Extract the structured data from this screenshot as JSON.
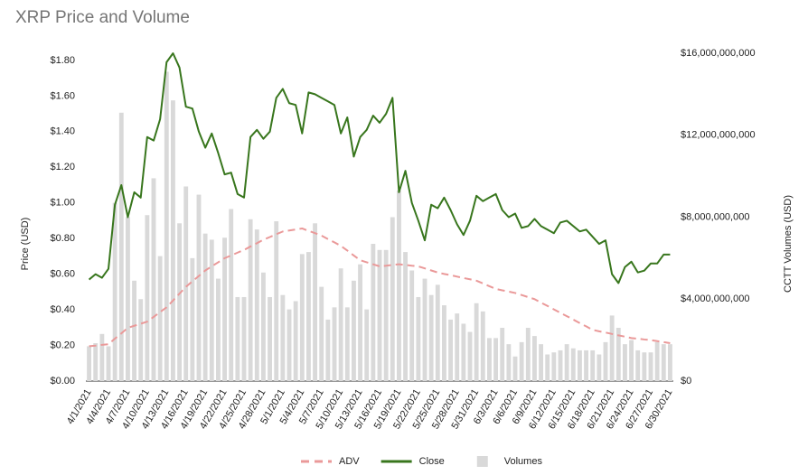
{
  "chart_data": {
    "type": "combo",
    "title": "XRP Price and Volume",
    "y_label": "Price (USD)",
    "y2_label": "CCTT Volumes (USD)",
    "categories": [
      "4/1/2021",
      null,
      null,
      "4/4/2021",
      null,
      null,
      "4/7/2021",
      null,
      null,
      "4/10/2021",
      null,
      null,
      "4/13/2021",
      null,
      null,
      "4/16/2021",
      null,
      null,
      "4/19/2021",
      null,
      null,
      "4/22/2021",
      null,
      null,
      "4/25/2021",
      null,
      null,
      "4/28/2021",
      null,
      null,
      "5/1/2021",
      null,
      null,
      "5/4/2021",
      null,
      null,
      "5/7/2021",
      null,
      null,
      "5/10/2021",
      null,
      null,
      "5/13/2021",
      null,
      null,
      "5/16/2021",
      null,
      null,
      "5/19/2021",
      null,
      null,
      "5/22/2021",
      null,
      null,
      "5/25/2021",
      null,
      null,
      "5/28/2021",
      null,
      null,
      "5/31/2021",
      null,
      null,
      "6/3/2021",
      null,
      null,
      "6/6/2021",
      null,
      null,
      "6/9/2021",
      null,
      null,
      "6/12/2021",
      null,
      null,
      "6/15/2021",
      null,
      null,
      "6/18/2021",
      null,
      null,
      "6/21/2021",
      null,
      null,
      "6/24/2021",
      null,
      null,
      "6/27/2021",
      null,
      null,
      "6/30/2021"
    ],
    "series": [
      {
        "name": "ADV",
        "type": "line",
        "dash": true,
        "axis": "y2",
        "color": "#ea9999",
        "values": [
          1700000000.0,
          1730000000.0,
          1770000000.0,
          1800000000.0,
          2070000000.0,
          2330000000.0,
          2600000000.0,
          2700000000.0,
          2800000000.0,
          2900000000.0,
          3130000000.0,
          3370000000.0,
          3600000000.0,
          3930000000.0,
          4270000000.0,
          4600000000.0,
          4870000000.0,
          5130000000.0,
          5400000000.0,
          5600000000.0,
          5800000000.0,
          6000000000.0,
          6130000000.0,
          6270000000.0,
          6400000000.0,
          6570000000.0,
          6730000000.0,
          6900000000.0,
          7030000000.0,
          7170000000.0,
          7300000000.0,
          7350000000.0,
          7400000000.0,
          7450000000.0,
          7330000000.0,
          7220000000.0,
          7100000000.0,
          6930000000.0,
          6770000000.0,
          6600000000.0,
          6370000000.0,
          6130000000.0,
          5900000000.0,
          5800000000.0,
          5700000000.0,
          5600000000.0,
          5630000000.0,
          5670000000.0,
          5700000000.0,
          5670000000.0,
          5630000000.0,
          5600000000.0,
          5500000000.0,
          5400000000.0,
          5300000000.0,
          5230000000.0,
          5170000000.0,
          5100000000.0,
          5030000000.0,
          4970000000.0,
          4900000000.0,
          4770000000.0,
          4630000000.0,
          4500000000.0,
          4430000000.0,
          4370000000.0,
          4300000000.0,
          4200000000.0,
          4100000000.0,
          4000000000.0,
          3830000000.0,
          3670000000.0,
          3500000000.0,
          3330000000.0,
          3170000000.0,
          3000000000.0,
          2830000000.0,
          2670000000.0,
          2500000000.0,
          2430000000.0,
          2370000000.0,
          2300000000.0,
          2230000000.0,
          2170000000.0,
          2100000000.0,
          2070000000.0,
          2030000000.0,
          2000000000.0,
          1950000000.0,
          1900000000.0,
          1850000000.0
        ]
      },
      {
        "name": "Close",
        "type": "line",
        "axis": "y",
        "color": "#38761d",
        "values": [
          0.57,
          0.6,
          0.58,
          0.63,
          0.99,
          1.1,
          0.92,
          1.06,
          1.03,
          1.37,
          1.35,
          1.47,
          1.79,
          1.84,
          1.76,
          1.54,
          1.53,
          1.4,
          1.31,
          1.39,
          1.28,
          1.16,
          1.17,
          1.05,
          1.03,
          1.37,
          1.41,
          1.36,
          1.4,
          1.59,
          1.64,
          1.56,
          1.55,
          1.39,
          1.62,
          1.61,
          1.59,
          1.57,
          1.55,
          1.39,
          1.48,
          1.26,
          1.37,
          1.41,
          1.49,
          1.45,
          1.5,
          1.59,
          1.06,
          1.18,
          1.0,
          0.9,
          0.79,
          0.99,
          0.97,
          1.03,
          0.96,
          0.88,
          0.82,
          0.9,
          1.04,
          1.01,
          1.03,
          1.05,
          0.96,
          0.92,
          0.94,
          0.86,
          0.87,
          0.91,
          0.87,
          0.85,
          0.83,
          0.89,
          0.9,
          0.87,
          0.84,
          0.85,
          0.81,
          0.77,
          0.79,
          0.6,
          0.55,
          0.64,
          0.67,
          0.61,
          0.62,
          0.66,
          0.66,
          0.71,
          0.71
        ]
      },
      {
        "name": "Volumes",
        "type": "bar",
        "axis": "y2",
        "color": "#d9d9d9",
        "values": [
          1700000000.0,
          1850000000.0,
          2300000000.0,
          1700000000.0,
          8700000000.0,
          13100000000.0,
          8000000000.0,
          4900000000.0,
          4000000000.0,
          8100000000.0,
          9900000000.0,
          6100000000.0,
          15100000000.0,
          13700000000.0,
          7700000000.0,
          9500000000.0,
          6000000000.0,
          9100000000.0,
          7200000000.0,
          6900000000.0,
          5000000000.0,
          7000000000.0,
          8400000000.0,
          4100000000.0,
          4100000000.0,
          7900000000.0,
          7400000000.0,
          5300000000.0,
          4100000000.0,
          7800000000.0,
          4200000000.0,
          3500000000.0,
          3900000000.0,
          6200000000.0,
          6300000000.0,
          7700000000.0,
          4600000000.0,
          3000000000.0,
          3600000000.0,
          5500000000.0,
          3600000000.0,
          4900000000.0,
          5700000000.0,
          3500000000.0,
          6700000000.0,
          6400000000.0,
          6400000000.0,
          8000000000.0,
          9300000000.0,
          6300000000.0,
          5400000000.0,
          4100000000.0,
          5000000000.0,
          4200000000.0,
          4700000000.0,
          3700000000.0,
          3000000000.0,
          3300000000.0,
          2800000000.0,
          2400000000.0,
          3800000000.0,
          3400000000.0,
          2100000000.0,
          2100000000.0,
          2600000000.0,
          1800000000.0,
          1200000000.0,
          1900000000.0,
          2600000000.0,
          2200000000.0,
          1800000000.0,
          1300000000.0,
          1400000000.0,
          1500000000.0,
          1800000000.0,
          1600000000.0,
          1500000000.0,
          1500000000.0,
          1500000000.0,
          1300000000.0,
          1900000000.0,
          3200000000.0,
          2600000000.0,
          1800000000.0,
          2000000000.0,
          1500000000.0,
          1400000000.0,
          1400000000.0,
          1900000000.0,
          1800000000.0,
          1800000000.0
        ]
      }
    ],
    "ylim": [
      0,
      1.84
    ],
    "yticks": [
      {
        "value": 0,
        "label": "$0.00"
      },
      {
        "value": 0.2,
        "label": "$0.20"
      },
      {
        "value": 0.4,
        "label": "$0.40"
      },
      {
        "value": 0.6,
        "label": "$0.60"
      },
      {
        "value": 0.8,
        "label": "$0.80"
      },
      {
        "value": 1.0,
        "label": "$1.00"
      },
      {
        "value": 1.2,
        "label": "$1.20"
      },
      {
        "value": 1.4,
        "label": "$1.40"
      },
      {
        "value": 1.6,
        "label": "$1.60"
      },
      {
        "value": 1.8,
        "label": "$1.80"
      }
    ],
    "y2lim": [
      0,
      16000000000
    ],
    "y2ticks": [
      {
        "value": 0,
        "label": "$0"
      },
      {
        "value": 4000000000,
        "label": "$4,000,000,000"
      },
      {
        "value": 8000000000,
        "label": "$8,000,000,000"
      },
      {
        "value": 12000000000,
        "label": "$12,000,000,000"
      },
      {
        "value": 16000000000,
        "label": "$16,000,000,000"
      }
    ],
    "legend": "bottom"
  }
}
